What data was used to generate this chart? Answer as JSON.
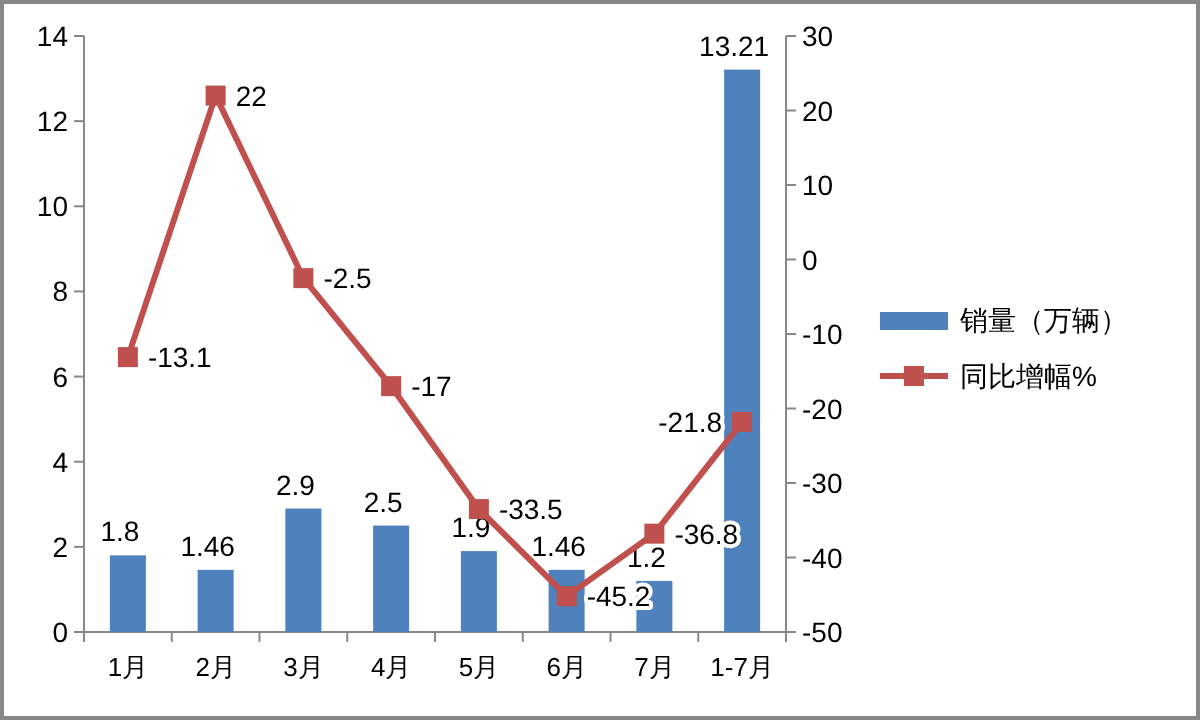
{
  "chart_data": {
    "type": "bar",
    "categories": [
      "1月",
      "2月",
      "3月",
      "4月",
      "5月",
      "6月",
      "7月",
      "1-7月"
    ],
    "series": [
      {
        "name": "销量（万辆）",
        "color": "#4f81bd",
        "values": [
          1.8,
          1.46,
          2.9,
          2.5,
          1.9,
          1.46,
          1.2,
          13.21
        ]
      },
      {
        "name": "同比增幅%",
        "type": "line",
        "axis": "y2",
        "color": "#c0504d",
        "marker": "square",
        "values": [
          -13.1,
          22,
          -2.5,
          -17,
          -33.5,
          -45.2,
          -36.8,
          -21.8
        ]
      }
    ],
    "ylim": [
      0,
      14
    ],
    "yticks": [
      0,
      2,
      4,
      6,
      8,
      10,
      12,
      14
    ],
    "y2lim": [
      -50,
      30
    ],
    "y2ticks": [
      -50,
      -40,
      -30,
      -20,
      -10,
      0,
      10,
      20,
      30
    ],
    "data_labels": true,
    "legend": "right",
    "grid": false
  }
}
